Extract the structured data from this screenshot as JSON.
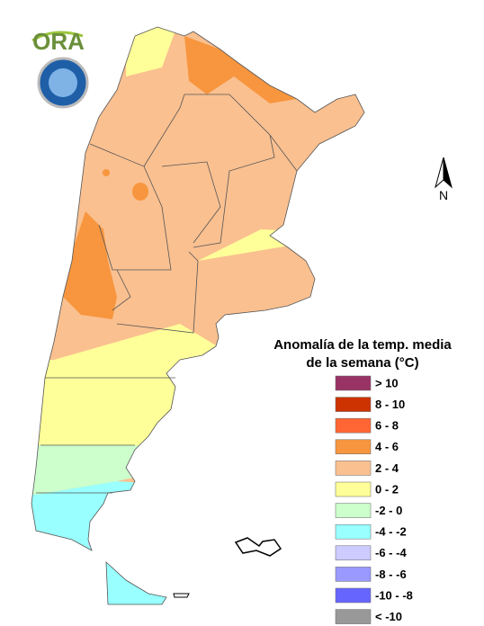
{
  "logo": {
    "text": "ORA"
  },
  "compass": {
    "label": "N"
  },
  "legend": {
    "title": [
      "Anomalía de la temp. media",
      "de la semana (°C)"
    ],
    "items": [
      {
        "label": "> 10",
        "color": "#993366"
      },
      {
        "label": "8 - 10",
        "color": "#cc3300"
      },
      {
        "label": "6 - 8",
        "color": "#ff6633"
      },
      {
        "label": "4 - 6",
        "color": "#f7963e"
      },
      {
        "label": "2 - 4",
        "color": "#fac090"
      },
      {
        "label": "0 - 2",
        "color": "#ffff99"
      },
      {
        "label": "-2 - 0",
        "color": "#ccffcc"
      },
      {
        "label": "-4 - -2",
        "color": "#99ffff"
      },
      {
        "label": "-6 - -4",
        "color": "#ccccff"
      },
      {
        "label": "-8 - -6",
        "color": "#9999ff"
      },
      {
        "label": "-10 - -8",
        "color": "#6666ff"
      },
      {
        "label": "< -10",
        "color": "#999999"
      }
    ]
  }
}
